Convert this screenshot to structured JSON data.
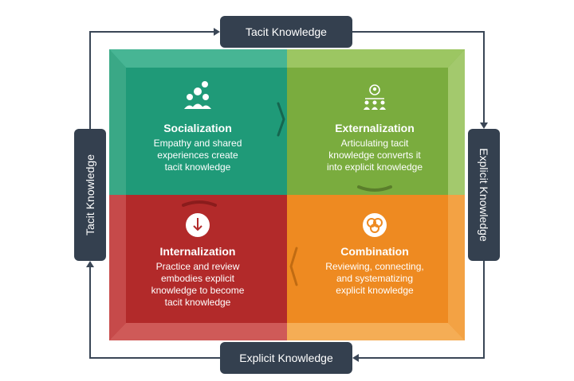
{
  "labels": {
    "top": "Tacit Knowledge",
    "bottom": "Explicit Knowledge",
    "left": "Tacit Knowledge",
    "right": "Explicit Knowledge"
  },
  "quadrants": [
    {
      "title": "Socialization",
      "desc_lines": [
        "Empathy and shared",
        "experiences create",
        "tacit knowledge"
      ],
      "icon": "people-like-icon",
      "color": "#1f9a78"
    },
    {
      "title": "Externalization",
      "desc_lines": [
        "Articulating tacit",
        "knowledge converts it",
        "into explicit knowledge"
      ],
      "icon": "presenter-audience-icon",
      "color": "#7aac3e"
    },
    {
      "title": "Internalization",
      "desc_lines": [
        "Practice and review",
        "embodies explicit",
        "knowledge to become",
        "tacit knowledge"
      ],
      "icon": "download-circle-icon",
      "color": "#b22a2a"
    },
    {
      "title": "Combination",
      "desc_lines": [
        "Reviewing, connecting,",
        "and systematizing",
        "explicit knowledge"
      ],
      "icon": "combination-circles-icon",
      "color": "#ee8a21"
    }
  ],
  "colors": {
    "label_bg": "#34404f",
    "line": "#3a4656",
    "text": "#ffffff"
  }
}
